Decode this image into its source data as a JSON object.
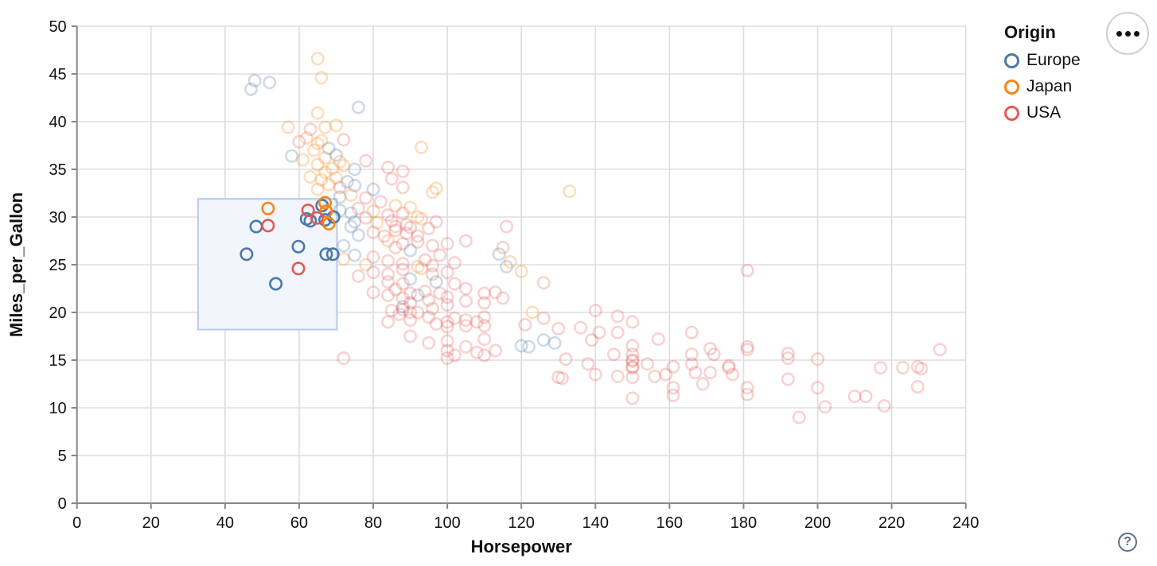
{
  "widgets": {
    "menu_button_name": "chart actions menu",
    "help_glyph": "?"
  },
  "chart_data": {
    "type": "scatter",
    "title": "",
    "xlabel": "Horsepower",
    "ylabel": "Miles_per_Gallon",
    "xlim": [
      0,
      240
    ],
    "ylim": [
      0,
      50
    ],
    "xticks": [
      0,
      20,
      40,
      60,
      80,
      100,
      120,
      140,
      160,
      180,
      200,
      220,
      240
    ],
    "yticks": [
      0,
      5,
      10,
      15,
      20,
      25,
      30,
      35,
      40,
      45,
      50
    ],
    "grid": true,
    "grid_color": "#dddddd",
    "axis_color": "#888888",
    "legend": {
      "title": "Origin",
      "position": "top-right",
      "entries": [
        {
          "label": "Europe",
          "color": "#4c78a8"
        },
        {
          "label": "Japan",
          "color": "#f58518"
        },
        {
          "label": "USA",
          "color": "#e45756"
        }
      ]
    },
    "brush": {
      "x": [
        32.7,
        70.2
      ],
      "y": [
        18.2,
        31.9
      ],
      "fill": "#f1f5fc",
      "stroke": "#b7c9ee"
    },
    "point_style": {
      "radius": 7.2,
      "stroke_width": 2.6,
      "faded_opacity": 0.27,
      "selected_opacity": 1.0
    },
    "series": [
      {
        "name": "Europe",
        "color": "#4c78a8",
        "selected": [
          [
            45.8,
            26.1
          ],
          [
            48.4,
            29.0
          ],
          [
            53.7,
            23.0
          ],
          [
            59.8,
            26.9
          ],
          [
            62.0,
            29.8
          ],
          [
            63.0,
            29.6
          ],
          [
            66.2,
            31.2
          ],
          [
            67.0,
            29.7
          ],
          [
            67.3,
            26.1
          ],
          [
            69.1,
            26.1
          ],
          [
            69.3,
            30.0
          ]
        ],
        "unselected": [
          [
            48,
            44.3
          ],
          [
            52,
            44.1
          ],
          [
            47,
            43.4
          ],
          [
            76,
            41.5
          ],
          [
            58,
            36.4
          ],
          [
            68,
            37.2
          ],
          [
            70,
            36.5
          ],
          [
            75,
            35.0
          ],
          [
            73,
            33.7
          ],
          [
            75,
            33.3
          ],
          [
            80,
            32.9
          ],
          [
            71,
            32.1
          ],
          [
            74,
            30.4
          ],
          [
            71,
            30.7
          ],
          [
            75,
            29.5
          ],
          [
            74,
            29.0
          ],
          [
            76,
            28.1
          ],
          [
            72,
            27.0
          ],
          [
            75,
            26.0
          ],
          [
            90,
            26.5
          ],
          [
            114,
            26.1
          ],
          [
            90,
            23.5
          ],
          [
            97,
            23.2
          ],
          [
            116,
            24.8
          ],
          [
            88,
            20.6
          ],
          [
            92,
            21.8
          ],
          [
            120,
            16.5
          ],
          [
            126,
            17.1
          ],
          [
            129,
            16.8
          ],
          [
            122,
            16.4
          ]
        ]
      },
      {
        "name": "Japan",
        "color": "#f58518",
        "selected": [
          [
            51.6,
            30.9
          ],
          [
            67.0,
            31.5
          ],
          [
            67.3,
            30.6
          ],
          [
            68.0,
            29.3
          ]
        ],
        "unselected": [
          [
            65,
            46.6
          ],
          [
            66,
            44.6
          ],
          [
            65,
            40.9
          ],
          [
            57,
            39.4
          ],
          [
            67,
            39.4
          ],
          [
            70,
            39.6
          ],
          [
            62,
            38.3
          ],
          [
            66,
            38.0
          ],
          [
            65,
            37.7
          ],
          [
            93,
            37.3
          ],
          [
            64,
            37.0
          ],
          [
            61,
            36.0
          ],
          [
            67,
            36.2
          ],
          [
            71,
            35.8
          ],
          [
            65,
            35.5
          ],
          [
            69,
            35.1
          ],
          [
            72,
            35.4
          ],
          [
            67,
            34.7
          ],
          [
            63,
            34.2
          ],
          [
            66,
            33.9
          ],
          [
            70,
            34.1
          ],
          [
            68,
            33.4
          ],
          [
            65,
            32.9
          ],
          [
            97,
            33.0
          ],
          [
            96,
            32.6
          ],
          [
            133,
            32.7
          ],
          [
            74,
            32.3
          ],
          [
            86,
            31.2
          ],
          [
            90,
            31.0
          ],
          [
            80,
            30.6
          ],
          [
            92,
            30.0
          ],
          [
            81,
            29.4
          ],
          [
            93,
            29.8
          ],
          [
            84,
            27.5
          ],
          [
            72,
            25.6
          ],
          [
            78,
            25.0
          ],
          [
            117,
            25.3
          ],
          [
            92,
            24.8
          ],
          [
            93,
            24.6
          ],
          [
            120,
            24.3
          ],
          [
            123,
            20.0
          ]
        ]
      },
      {
        "name": "USA",
        "color": "#e45756",
        "selected": [
          [
            51.6,
            29.1
          ],
          [
            59.8,
            24.6
          ],
          [
            62.4,
            30.7
          ],
          [
            64.8,
            29.9
          ]
        ],
        "unselected": [
          [
            63,
            39.2
          ],
          [
            60,
            37.9
          ],
          [
            72,
            38.1
          ],
          [
            78,
            35.9
          ],
          [
            84,
            35.2
          ],
          [
            88,
            34.8
          ],
          [
            85,
            34.0
          ],
          [
            88,
            33.1
          ],
          [
            71,
            33.1
          ],
          [
            78,
            32.0
          ],
          [
            82,
            31.6
          ],
          [
            76,
            30.9
          ],
          [
            84,
            30.2
          ],
          [
            88,
            30.4
          ],
          [
            78,
            29.9
          ],
          [
            85,
            29.6
          ],
          [
            89,
            29.2
          ],
          [
            97,
            29.5
          ],
          [
            116,
            29.0
          ],
          [
            86,
            29.0
          ],
          [
            80,
            28.4
          ],
          [
            83,
            28.0
          ],
          [
            86,
            28.6
          ],
          [
            89,
            28.3
          ],
          [
            92,
            28.0
          ],
          [
            95,
            28.8
          ],
          [
            90,
            28.9
          ],
          [
            88,
            27.2
          ],
          [
            92,
            27.4
          ],
          [
            96,
            27.0
          ],
          [
            100,
            27.2
          ],
          [
            105,
            27.5
          ],
          [
            115,
            26.8
          ],
          [
            80,
            25.8
          ],
          [
            84,
            25.4
          ],
          [
            88,
            25.1
          ],
          [
            94,
            25.5
          ],
          [
            98,
            26.0
          ],
          [
            102,
            25.2
          ],
          [
            86,
            26.8
          ],
          [
            96,
            24.9
          ],
          [
            80,
            24.2
          ],
          [
            84,
            24.0
          ],
          [
            88,
            24.5
          ],
          [
            96,
            24.0
          ],
          [
            100,
            24.2
          ],
          [
            102,
            23.0
          ],
          [
            126,
            23.1
          ],
          [
            76,
            23.8
          ],
          [
            84,
            23.2
          ],
          [
            88,
            23.0
          ],
          [
            80,
            22.1
          ],
          [
            84,
            21.8
          ],
          [
            86,
            22.4
          ],
          [
            88,
            21.5
          ],
          [
            90,
            22.0
          ],
          [
            90,
            21.0
          ],
          [
            94,
            22.2
          ],
          [
            95,
            21.3
          ],
          [
            98,
            22.0
          ],
          [
            100,
            21.6
          ],
          [
            100,
            20.8
          ],
          [
            105,
            22.5
          ],
          [
            105,
            21.2
          ],
          [
            110,
            22.0
          ],
          [
            110,
            21.0
          ],
          [
            113,
            22.1
          ],
          [
            115,
            21.5
          ],
          [
            85,
            20.2
          ],
          [
            87,
            19.8
          ],
          [
            88,
            20.3
          ],
          [
            90,
            20.0
          ],
          [
            90,
            19.2
          ],
          [
            92,
            20.0
          ],
          [
            95,
            19.5
          ],
          [
            97,
            18.8
          ],
          [
            100,
            19.0
          ],
          [
            100,
            18.5
          ],
          [
            102,
            19.4
          ],
          [
            105,
            19.2
          ],
          [
            105,
            18.6
          ],
          [
            108,
            19.0
          ],
          [
            110,
            19.5
          ],
          [
            110,
            18.6
          ],
          [
            140,
            20.2
          ],
          [
            146,
            19.6
          ],
          [
            84,
            19.0
          ],
          [
            96,
            20.4
          ],
          [
            90,
            17.5
          ],
          [
            95,
            16.8
          ],
          [
            100,
            17.0
          ],
          [
            100,
            16.0
          ],
          [
            102,
            15.5
          ],
          [
            105,
            16.4
          ],
          [
            108,
            15.8
          ],
          [
            110,
            17.2
          ],
          [
            113,
            16.0
          ],
          [
            100,
            15.2
          ],
          [
            110,
            15.5
          ],
          [
            72,
            15.2
          ],
          [
            121,
            18.7
          ],
          [
            126,
            19.4
          ],
          [
            130,
            18.3
          ],
          [
            136,
            18.4
          ],
          [
            132,
            15.1
          ],
          [
            131,
            13.1
          ],
          [
            130,
            13.2
          ],
          [
            141,
            17.9
          ],
          [
            139,
            17.1
          ],
          [
            138,
            14.6
          ],
          [
            140,
            13.5
          ],
          [
            146,
            17.9
          ],
          [
            145,
            15.6
          ],
          [
            146,
            13.3
          ],
          [
            150,
            19.0
          ],
          [
            150,
            16.5
          ],
          [
            150,
            15.6
          ],
          [
            150,
            15.0
          ],
          [
            150,
            14.9
          ],
          [
            150,
            14.3
          ],
          [
            150,
            14.2
          ],
          [
            150,
            13.2
          ],
          [
            150,
            11.0
          ],
          [
            154,
            14.6
          ],
          [
            157,
            17.2
          ],
          [
            156,
            13.3
          ],
          [
            159,
            13.5
          ],
          [
            161,
            14.3
          ],
          [
            161,
            12.1
          ],
          [
            161,
            11.3
          ],
          [
            166,
            17.9
          ],
          [
            166,
            15.6
          ],
          [
            166,
            14.6
          ],
          [
            167,
            13.7
          ],
          [
            169,
            12.5
          ],
          [
            171,
            16.2
          ],
          [
            172,
            15.6
          ],
          [
            171,
            13.7
          ],
          [
            176,
            14.4
          ],
          [
            176,
            14.2
          ],
          [
            177,
            13.5
          ],
          [
            181,
            24.4
          ],
          [
            181,
            16.4
          ],
          [
            181,
            16.1
          ],
          [
            181,
            12.1
          ],
          [
            181,
            11.4
          ],
          [
            192,
            15.7
          ],
          [
            192,
            15.2
          ],
          [
            192,
            13.0
          ],
          [
            200,
            15.1
          ],
          [
            200,
            12.1
          ],
          [
            195,
            9.0
          ],
          [
            202,
            10.1
          ],
          [
            210,
            11.2
          ],
          [
            213,
            11.2
          ],
          [
            217,
            14.2
          ],
          [
            218,
            10.2
          ],
          [
            223,
            14.2
          ],
          [
            227,
            14.3
          ],
          [
            228,
            14.1
          ],
          [
            227,
            12.2
          ],
          [
            233,
            16.1
          ]
        ]
      }
    ]
  }
}
